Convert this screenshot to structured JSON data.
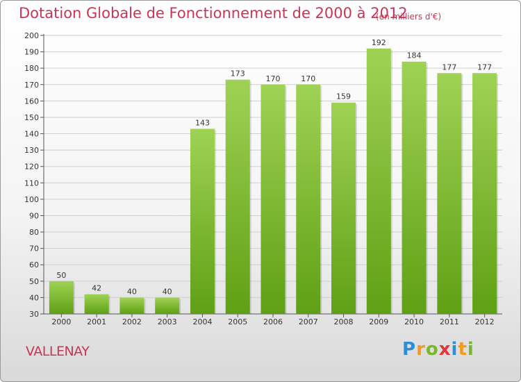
{
  "header": {
    "title": "Dotation Globale de Fonctionnement de 2000 à 2012",
    "subtitle": "(en milliers d'€)"
  },
  "footer": {
    "place": "VALLENAY",
    "logo_letters": [
      {
        "char": "P",
        "color": "#2a8fd6"
      },
      {
        "char": "r",
        "color": "#f39a1e"
      },
      {
        "char": "o",
        "color": "#78b82a"
      },
      {
        "char": "x",
        "color": "#e2363b"
      },
      {
        "char": "i",
        "color": "#2a8fd6"
      },
      {
        "char": "t",
        "color": "#f39a1e"
      },
      {
        "char": "i",
        "color": "#78b82a"
      }
    ]
  },
  "colors": {
    "bar_top": "#9fd254",
    "bar_bottom": "#5fa015",
    "grid": "#cfcfcf",
    "accent": "#cc3355"
  },
  "chart_data": {
    "type": "bar",
    "title": "Dotation Globale de Fonctionnement de 2000 à 2012",
    "subtitle": "(en milliers d'€)",
    "categories": [
      "2000",
      "2001",
      "2002",
      "2003",
      "2004",
      "2005",
      "2006",
      "2007",
      "2008",
      "2009",
      "2010",
      "2011",
      "2012"
    ],
    "values": [
      50,
      42,
      40,
      40,
      143,
      173,
      170,
      170,
      159,
      192,
      184,
      177,
      177
    ],
    "ylim": [
      30,
      200
    ],
    "yticks": [
      30,
      40,
      50,
      60,
      70,
      80,
      90,
      100,
      110,
      120,
      130,
      140,
      150,
      160,
      170,
      180,
      190,
      200
    ],
    "grid": true,
    "data_labels": true
  }
}
